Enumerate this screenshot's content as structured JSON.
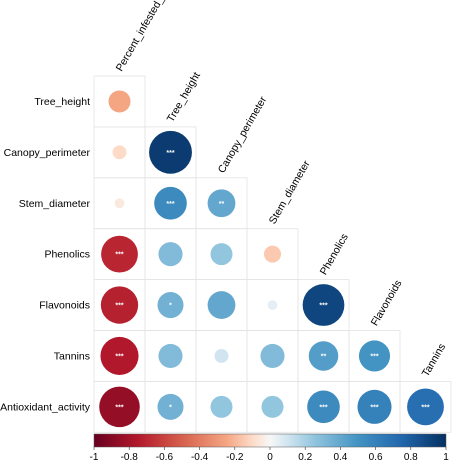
{
  "chart_data": {
    "type": "heatmap",
    "subtype": "correlation-matrix-lower-circles",
    "variables": [
      "Percent_infested_leaves",
      "Tree_height",
      "Canopy_perimeter",
      "Stem_diameter",
      "Phenolics",
      "Flavonoids",
      "Tannins",
      "Antioxidant_activity"
    ],
    "row_labels": [
      "Tree_height",
      "Canopy_perimeter",
      "Stem_diameter",
      "Phenolics",
      "Flavonoids",
      "Tannins",
      "Antioxidant_activity"
    ],
    "col_labels": [
      "Percent_infested_leaves",
      "Tree_height",
      "Canopy_perimeter",
      "Stem_diameter",
      "Phenolics",
      "Flavonoids",
      "Tannins"
    ],
    "correlations": [
      [
        -0.25
      ],
      [
        -0.1,
        0.95
      ],
      [
        -0.05,
        0.55,
        0.4
      ],
      [
        -0.7,
        0.3,
        0.25,
        -0.15
      ],
      [
        -0.72,
        0.35,
        0.4,
        0.05,
        0.9
      ],
      [
        -0.75,
        0.3,
        0.1,
        0.3,
        0.45,
        0.5
      ],
      [
        -0.85,
        0.35,
        0.25,
        0.25,
        0.55,
        0.6,
        0.7
      ]
    ],
    "significance": [
      [
        ""
      ],
      [
        "",
        "***"
      ],
      [
        "",
        "***",
        "**"
      ],
      [
        "***",
        "",
        "",
        ""
      ],
      [
        "***",
        "*",
        "",
        "",
        "***"
      ],
      [
        "***",
        "",
        "",
        "",
        "**",
        "***"
      ],
      [
        "***",
        "*",
        "",
        "",
        "***",
        "***",
        "***"
      ]
    ],
    "colorbar": {
      "min": -1,
      "max": 1,
      "ticks": [
        "-1",
        "-0.8",
        "-0.6",
        "-0.4",
        "-0.2",
        "0",
        "0.2",
        "0.4",
        "0.6",
        "0.8",
        "1"
      ],
      "colors": {
        "negative_strong": "#67001f",
        "negative_mid": "#d6604d",
        "negative_light": "#fddbc7",
        "neutral": "#f7f7f7",
        "positive_light": "#d1e5f0",
        "positive_mid": "#4393c3",
        "positive_strong": "#053061"
      }
    },
    "legend_position": "bottom"
  }
}
